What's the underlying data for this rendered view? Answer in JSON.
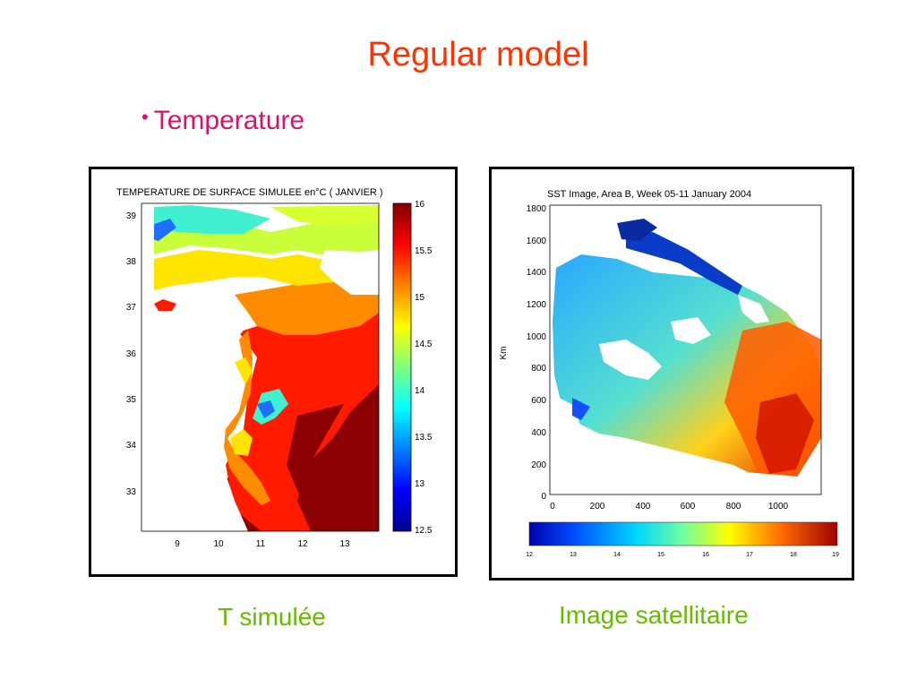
{
  "slide": {
    "title": "Regular model",
    "bullet_symbol": "•",
    "bullet": "Temperature"
  },
  "left_figure": {
    "title": "TEMPERATURE DE SURFACE SIMULEE en°C ( JANVIER )",
    "y_ticks": [
      "39",
      "38",
      "37",
      "36",
      "35",
      "34",
      "33"
    ],
    "x_ticks": [
      "9",
      "10",
      "11",
      "12",
      "13"
    ],
    "colorbar_ticks": [
      "16",
      "15.5",
      "15",
      "14.5",
      "14",
      "13.5",
      "13",
      "12.5"
    ]
  },
  "right_figure": {
    "title": "SST Image, Area B, Week 05-11 January 2004",
    "ylabel": "Km",
    "y_ticks": [
      "1800",
      "1600",
      "1400",
      "1200",
      "1000",
      "800",
      "600",
      "400",
      "200",
      "0"
    ],
    "x_ticks": [
      "0",
      "200",
      "400",
      "600",
      "800",
      "1000"
    ],
    "colorbar_ticks": [
      "12",
      "13",
      "14",
      "15",
      "16",
      "17",
      "18",
      "19"
    ]
  },
  "captions": {
    "left": "T simulée",
    "right": "Image satellitaire"
  },
  "colors": {
    "title": "#ff3300",
    "bullet": "#e0106a",
    "caption": "#66bb00"
  }
}
